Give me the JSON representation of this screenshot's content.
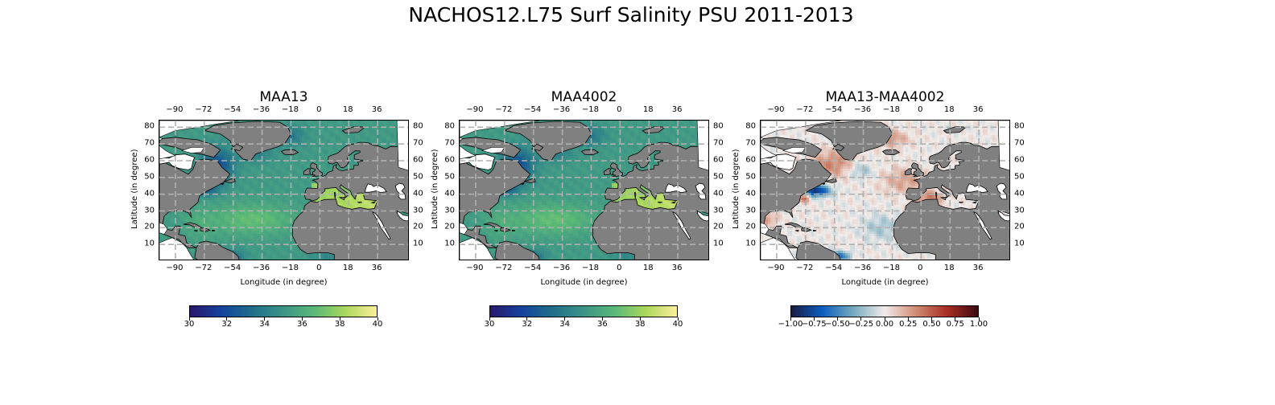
{
  "title": "NACHOS12.L75 Surf Salinity PSU 2011-2013",
  "panels": [
    {
      "title": "MAA13",
      "xlabel": "Longitude (in degree)",
      "ylabel": "Latitude (in degree)",
      "colormap": "haline",
      "colorbar": {
        "ticks": [
          "30",
          "32",
          "34",
          "36",
          "38",
          "40"
        ],
        "range": [
          30,
          40
        ]
      }
    },
    {
      "title": "MAA4002",
      "xlabel": "Longitude (in degree)",
      "ylabel": "Latitude (in degree)",
      "colormap": "haline",
      "colorbar": {
        "ticks": [
          "30",
          "32",
          "34",
          "36",
          "38",
          "40"
        ],
        "range": [
          30,
          40
        ]
      }
    },
    {
      "title": "MAA13-MAA4002",
      "xlabel": "Longitude (in degree)",
      "ylabel": "Latitude (in degree)",
      "colormap": "balance",
      "colorbar": {
        "ticks": [
          "−1.00",
          "−0.75",
          "−0.50",
          "−0.25",
          "0.00",
          "0.25",
          "0.50",
          "0.75",
          "1.00"
        ],
        "range": [
          -1,
          1
        ]
      }
    }
  ],
  "lon_ticks": [
    "−90",
    "−72",
    "−54",
    "−36",
    "−18",
    "0",
    "18",
    "36"
  ],
  "lat_ticks": [
    "10",
    "20",
    "30",
    "40",
    "50",
    "60",
    "70",
    "80"
  ],
  "colors": {
    "land": "#808080",
    "grid": "#b0b0b0",
    "haline": [
      "#2a186c",
      "#14439c",
      "#206e8b",
      "#3c9387",
      "#5ab978",
      "#aad85c",
      "#fdef9a"
    ],
    "balance": [
      "#181c43",
      "#0c5ebe",
      "#75aabe",
      "#f1ecea",
      "#d08b73",
      "#a92e23",
      "#3c0912"
    ]
  }
}
